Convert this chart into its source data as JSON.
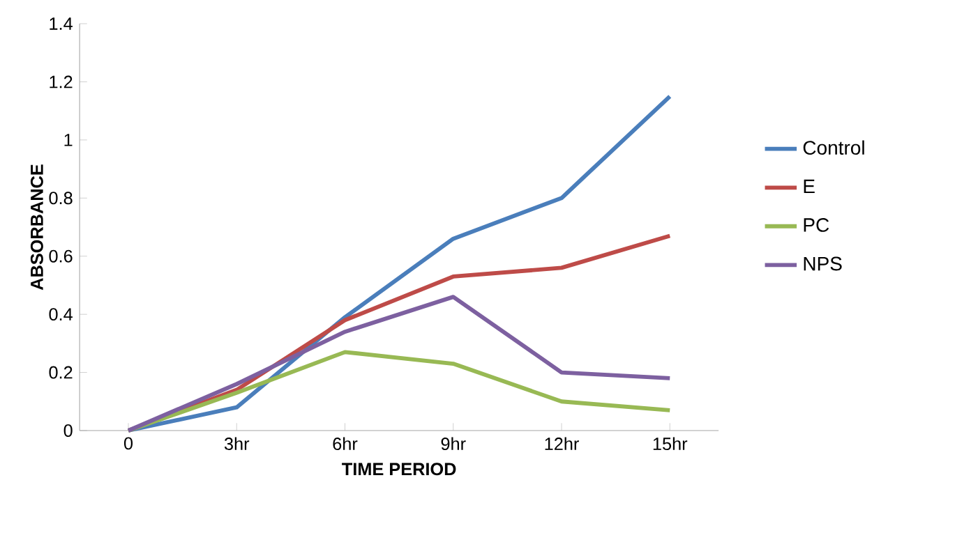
{
  "chart_data": {
    "type": "line",
    "xlabel": "TIME PERIOD",
    "ylabel": "ABSORBANCE",
    "categories": [
      "0",
      "3hr",
      "6hr",
      "9hr",
      "12hr",
      "15hr"
    ],
    "ylim": [
      0,
      1.4
    ],
    "yticks": [
      0,
      0.2,
      0.4,
      0.6,
      0.8,
      1,
      1.2,
      1.4
    ],
    "legend": "right",
    "marker": "none",
    "grid": false,
    "series": [
      {
        "name": "Control",
        "color": "#4a7ebb",
        "values": [
          0,
          0.08,
          0.39,
          0.66,
          0.8,
          1.15
        ]
      },
      {
        "name": "E",
        "color": "#be4b48",
        "values": [
          0,
          0.14,
          0.38,
          0.53,
          0.56,
          0.67
        ]
      },
      {
        "name": "PC",
        "color": "#98b954",
        "values": [
          0,
          0.13,
          0.27,
          0.23,
          0.1,
          0.07
        ]
      },
      {
        "name": "NPS",
        "color": "#7d60a0",
        "values": [
          0,
          0.16,
          0.34,
          0.46,
          0.2,
          0.18
        ]
      }
    ]
  }
}
